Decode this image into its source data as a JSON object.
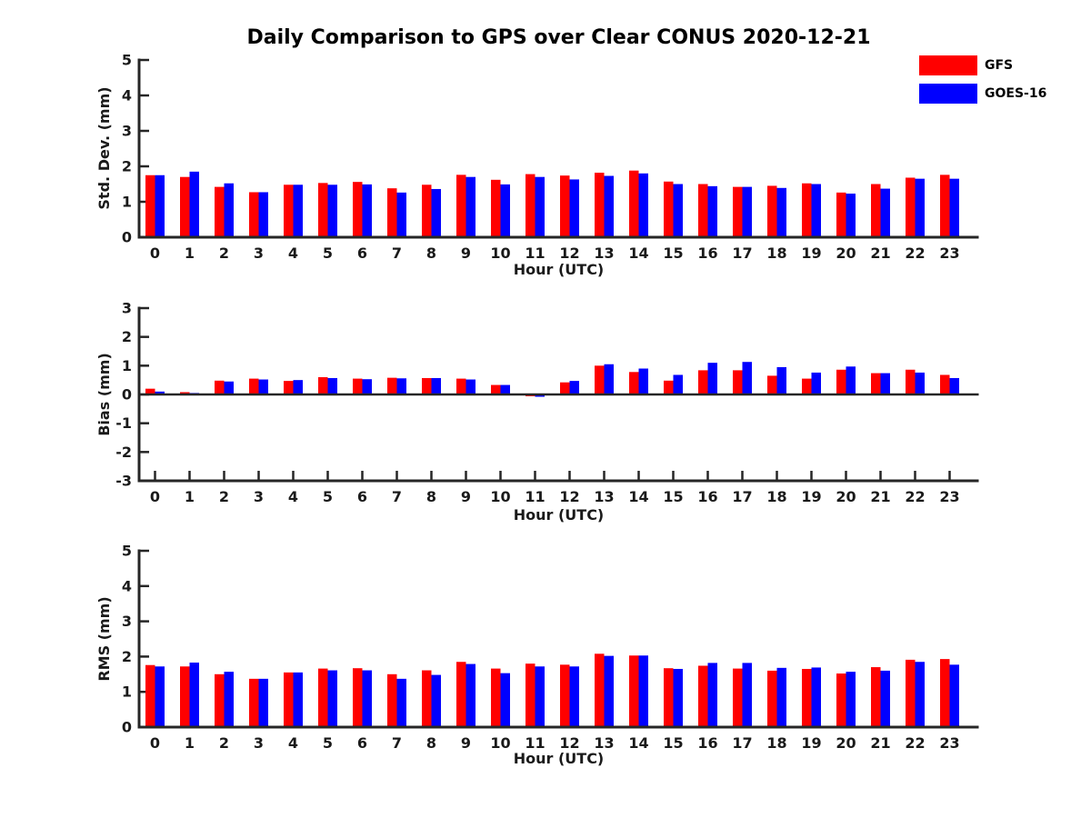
{
  "title": "Daily Comparison to GPS over Clear CONUS 2020-12-21",
  "legend": {
    "position": "top-right",
    "items": [
      {
        "label": "GFS",
        "color": "#ff0000"
      },
      {
        "label": "GOES-16",
        "color": "#0000ff"
      }
    ]
  },
  "colors": {
    "gfs": "#ff0000",
    "goes16": "#0000ff",
    "axis": "#262626",
    "text": "#1a1a1a"
  },
  "chart_data": [
    {
      "type": "bar",
      "ylabel": "Std. Dev. (mm)",
      "xlabel": "Hour (UTC)",
      "categories": [
        "0",
        "1",
        "2",
        "3",
        "4",
        "5",
        "6",
        "7",
        "8",
        "9",
        "10",
        "11",
        "12",
        "13",
        "14",
        "15",
        "16",
        "17",
        "18",
        "19",
        "20",
        "21",
        "22",
        "23"
      ],
      "ylim": [
        0,
        5
      ],
      "yticks": [
        0,
        1,
        2,
        3,
        4,
        5
      ],
      "grid": false,
      "series": [
        {
          "name": "GFS",
          "color": "#ff0000",
          "values": [
            1.75,
            1.7,
            1.42,
            1.27,
            1.48,
            1.53,
            1.56,
            1.38,
            1.48,
            1.76,
            1.62,
            1.78,
            1.74,
            1.82,
            1.88,
            1.57,
            1.5,
            1.42,
            1.45,
            1.52,
            1.26,
            1.5,
            1.68,
            1.76
          ]
        },
        {
          "name": "GOES-16",
          "color": "#0000ff",
          "values": [
            1.75,
            1.85,
            1.52,
            1.27,
            1.48,
            1.48,
            1.49,
            1.26,
            1.36,
            1.7,
            1.49,
            1.7,
            1.63,
            1.73,
            1.8,
            1.5,
            1.44,
            1.42,
            1.39,
            1.5,
            1.23,
            1.37,
            1.65,
            1.65
          ]
        }
      ]
    },
    {
      "type": "bar",
      "ylabel": "Bias (mm)",
      "xlabel": "Hour (UTC)",
      "categories": [
        "0",
        "1",
        "2",
        "3",
        "4",
        "5",
        "6",
        "7",
        "8",
        "9",
        "10",
        "11",
        "12",
        "13",
        "14",
        "15",
        "16",
        "17",
        "18",
        "19",
        "20",
        "21",
        "22",
        "23"
      ],
      "ylim": [
        -3,
        3
      ],
      "yticks": [
        -3,
        -2,
        -1,
        0,
        1,
        2,
        3
      ],
      "grid": false,
      "series": [
        {
          "name": "GFS",
          "color": "#ff0000",
          "values": [
            0.2,
            0.08,
            0.48,
            0.55,
            0.47,
            0.6,
            0.55,
            0.58,
            0.57,
            0.55,
            0.33,
            -0.06,
            0.42,
            1.0,
            0.78,
            0.48,
            0.84,
            0.84,
            0.65,
            0.55,
            0.86,
            0.74,
            0.86,
            0.68
          ]
        },
        {
          "name": "GOES-16",
          "color": "#0000ff",
          "values": [
            0.1,
            0.05,
            0.45,
            0.52,
            0.5,
            0.57,
            0.53,
            0.56,
            0.57,
            0.52,
            0.33,
            -0.08,
            0.47,
            1.05,
            0.9,
            0.68,
            1.1,
            1.13,
            0.95,
            0.76,
            0.97,
            0.74,
            0.76,
            0.57
          ]
        }
      ]
    },
    {
      "type": "bar",
      "ylabel": "RMS (mm)",
      "xlabel": "Hour (UTC)",
      "categories": [
        "0",
        "1",
        "2",
        "3",
        "4",
        "5",
        "6",
        "7",
        "8",
        "9",
        "10",
        "11",
        "12",
        "13",
        "14",
        "15",
        "16",
        "17",
        "18",
        "19",
        "20",
        "21",
        "22",
        "23"
      ],
      "ylim": [
        0,
        5
      ],
      "yticks": [
        0,
        1,
        2,
        3,
        4,
        5
      ],
      "grid": false,
      "series": [
        {
          "name": "GFS",
          "color": "#ff0000",
          "values": [
            1.76,
            1.72,
            1.5,
            1.37,
            1.55,
            1.66,
            1.67,
            1.5,
            1.61,
            1.85,
            1.66,
            1.8,
            1.77,
            2.08,
            2.03,
            1.67,
            1.74,
            1.66,
            1.6,
            1.65,
            1.52,
            1.7,
            1.91,
            1.93
          ]
        },
        {
          "name": "GOES-16",
          "color": "#0000ff",
          "values": [
            1.72,
            1.83,
            1.57,
            1.37,
            1.55,
            1.61,
            1.61,
            1.37,
            1.48,
            1.79,
            1.53,
            1.72,
            1.72,
            2.02,
            2.03,
            1.65,
            1.82,
            1.82,
            1.68,
            1.69,
            1.57,
            1.6,
            1.85,
            1.77
          ]
        }
      ]
    }
  ]
}
